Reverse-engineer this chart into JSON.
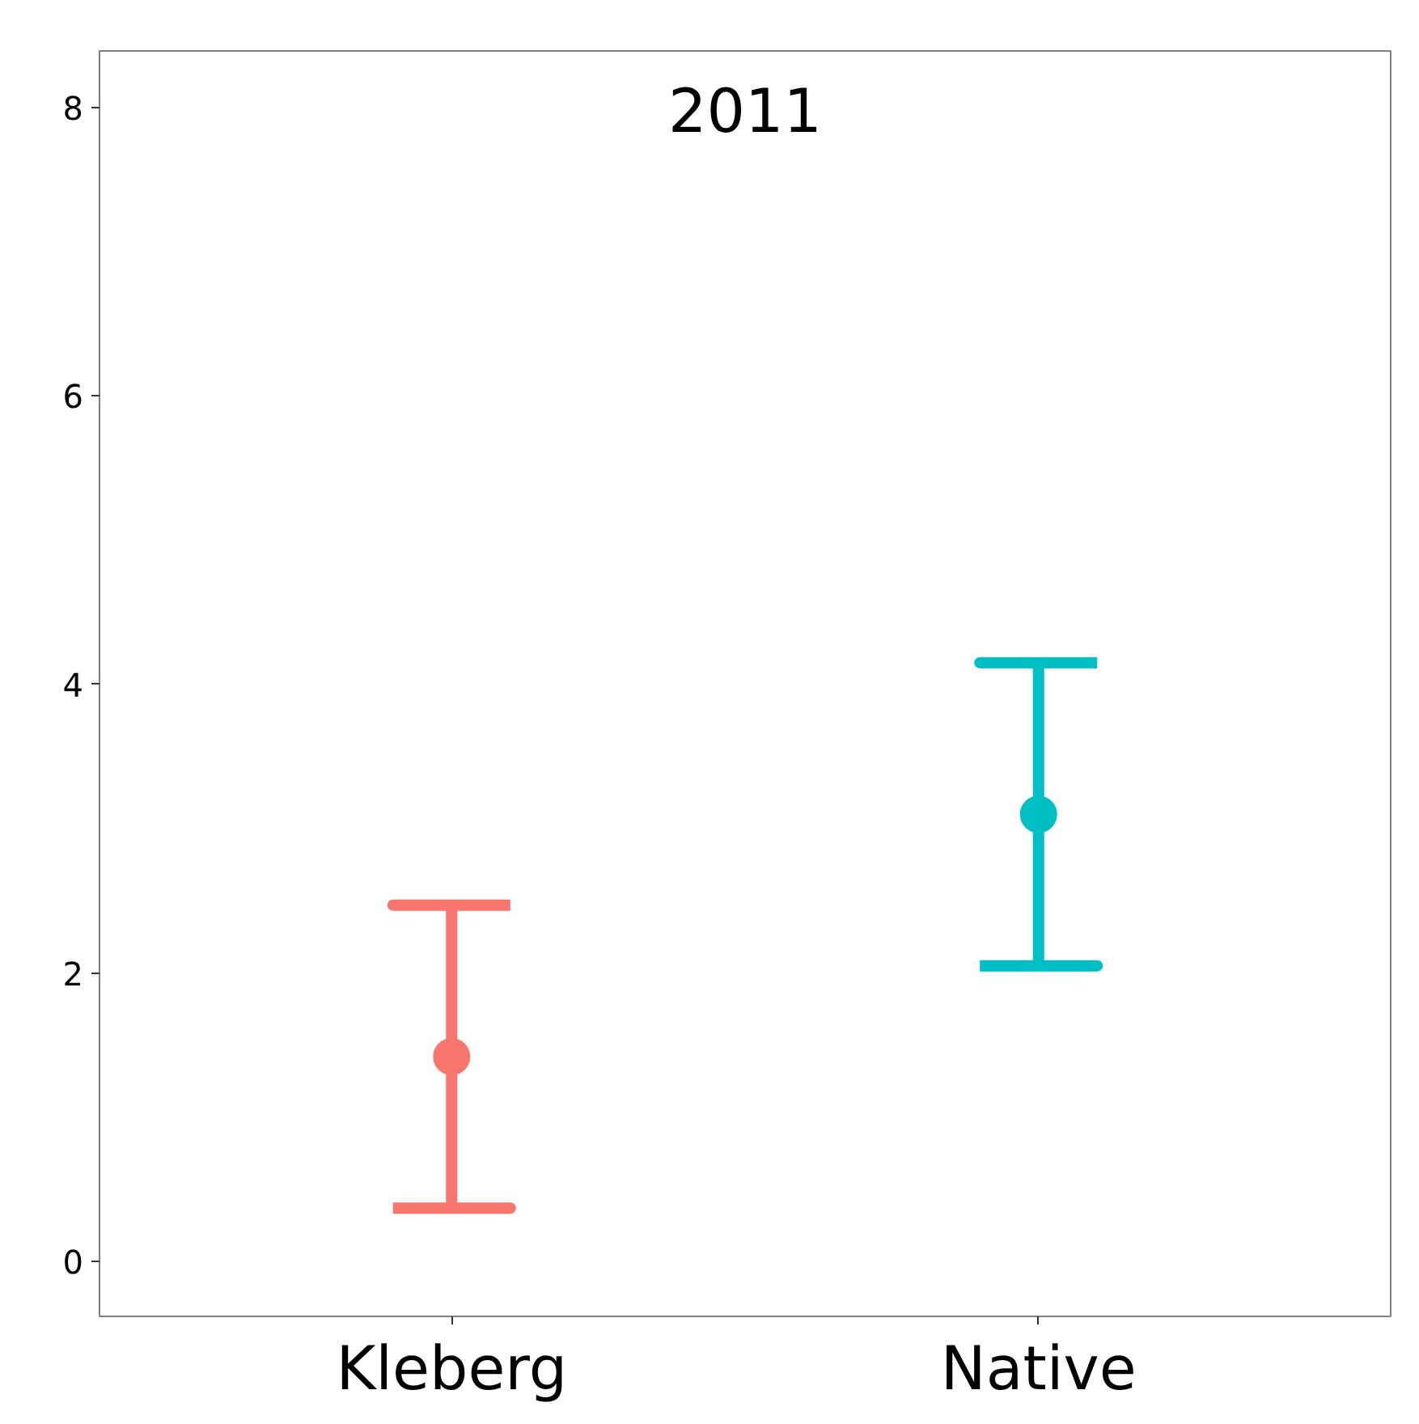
{
  "chart_data": {
    "type": "scatter",
    "title": "2011",
    "categories": [
      "Kleberg",
      "Native"
    ],
    "values": [
      1.42,
      3.1
    ],
    "colors": [
      "#f8766d",
      "#00bfc4"
    ],
    "errors": [
      1.05,
      1.05
    ],
    "ylim": [
      -0.38,
      8.39
    ],
    "yticks": [
      0,
      2,
      4,
      6,
      8
    ],
    "grid": false,
    "legend": false,
    "marker": "circle"
  }
}
